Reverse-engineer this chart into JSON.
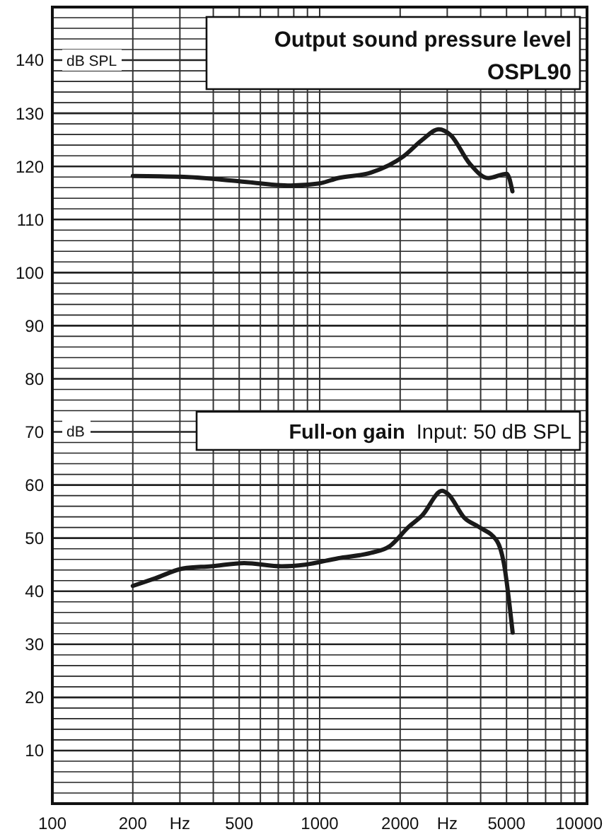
{
  "chart_data": {
    "type": "line",
    "log": "x",
    "grid": true,
    "line_style": "solid",
    "marker": "none",
    "xlim": [
      100,
      10000
    ],
    "ylim": [
      0,
      150
    ],
    "xticks": [
      100,
      200,
      {
        "value": 300,
        "label": "Hz"
      },
      {
        "value": 400,
        "label": null
      },
      500,
      {
        "value": 600,
        "label": null
      },
      {
        "value": 700,
        "label": null
      },
      {
        "value": 800,
        "label": null
      },
      {
        "value": 900,
        "label": null
      },
      1000,
      2000,
      {
        "value": 3000,
        "label": "Hz"
      },
      {
        "value": 4000,
        "label": null
      },
      5000,
      {
        "value": 6000,
        "label": null
      },
      {
        "value": 7000,
        "label": null
      },
      {
        "value": 8000,
        "label": null
      },
      {
        "value": 9000,
        "label": null
      },
      10000
    ],
    "yticks": [
      {
        "value": 2,
        "label": null
      },
      {
        "value": 4,
        "label": null
      },
      {
        "value": 6,
        "label": null
      },
      {
        "value": 8,
        "label": null
      },
      10,
      {
        "value": 12,
        "label": null
      },
      {
        "value": 14,
        "label": null
      },
      {
        "value": 16,
        "label": null
      },
      {
        "value": 18,
        "label": null
      },
      20,
      {
        "value": 22,
        "label": null
      },
      {
        "value": 24,
        "label": null
      },
      {
        "value": 26,
        "label": null
      },
      {
        "value": 28,
        "label": null
      },
      30,
      {
        "value": 32,
        "label": null
      },
      {
        "value": 34,
        "label": null
      },
      {
        "value": 36,
        "label": null
      },
      {
        "value": 38,
        "label": null
      },
      40,
      {
        "value": 42,
        "label": null
      },
      {
        "value": 44,
        "label": null
      },
      {
        "value": 46,
        "label": null
      },
      {
        "value": 48,
        "label": null
      },
      50,
      {
        "value": 52,
        "label": null
      },
      {
        "value": 54,
        "label": null
      },
      {
        "value": 56,
        "label": null
      },
      {
        "value": 58,
        "label": null
      },
      60,
      {
        "value": 62,
        "label": null
      },
      {
        "value": 64,
        "label": null
      },
      {
        "value": 66,
        "label": null
      },
      {
        "value": 68,
        "label": null
      },
      70,
      {
        "value": 72,
        "label": null
      },
      {
        "value": 74,
        "label": null
      },
      {
        "value": 76,
        "label": null
      },
      {
        "value": 78,
        "label": null
      },
      80,
      {
        "value": 82,
        "label": null
      },
      {
        "value": 84,
        "label": null
      },
      {
        "value": 86,
        "label": null
      },
      {
        "value": 88,
        "label": null
      },
      90,
      {
        "value": 92,
        "label": null
      },
      {
        "value": 94,
        "label": null
      },
      {
        "value": 96,
        "label": null
      },
      {
        "value": 98,
        "label": null
      },
      100,
      {
        "value": 102,
        "label": null
      },
      {
        "value": 104,
        "label": null
      },
      {
        "value": 106,
        "label": null
      },
      {
        "value": 108,
        "label": null
      },
      110,
      {
        "value": 112,
        "label": null
      },
      {
        "value": 114,
        "label": null
      },
      {
        "value": 116,
        "label": null
      },
      {
        "value": 118,
        "label": null
      },
      120,
      {
        "value": 122,
        "label": null
      },
      {
        "value": 124,
        "label": null
      },
      {
        "value": 126,
        "label": null
      },
      {
        "value": 128,
        "label": null
      },
      130,
      {
        "value": 132,
        "label": null
      },
      {
        "value": 134,
        "label": null
      },
      {
        "value": 136,
        "label": null
      },
      {
        "value": 138,
        "label": null
      },
      140,
      {
        "value": 142,
        "label": null
      },
      {
        "value": 144,
        "label": null
      },
      {
        "value": 146,
        "label": null
      },
      {
        "value": 148,
        "label": null
      }
    ],
    "series": [
      {
        "color": "#1a1a1a",
        "x": [
          200,
          320,
          500,
          780,
          1000,
          1170,
          1550,
          2060,
          2420,
          2790,
          3090,
          3630,
          4270,
          5010,
          5260
        ],
        "values": [
          118.2,
          118.0,
          117.2,
          116.4,
          116.8,
          117.8,
          118.8,
          121.9,
          125.0,
          127.0,
          125.9,
          120.6,
          117.8,
          118.6,
          115.3
        ]
      },
      {
        "color": "#1a1a1a",
        "x": [
          200,
          242,
          309,
          393,
          522,
          721,
          882,
          1170,
          1550,
          1830,
          2150,
          2420,
          2870,
          3020,
          3480,
          3940,
          4610,
          4880,
          5270
        ],
        "values": [
          41.0,
          42.4,
          44.3,
          44.7,
          45.3,
          44.7,
          45.0,
          46.2,
          47.2,
          48.5,
          52.1,
          54.3,
          58.9,
          58.3,
          53.8,
          52.1,
          49.4,
          45.4,
          32.2
        ]
      }
    ],
    "annotations": [
      "dB SPL",
      "Output sound pressure level",
      "OSPL90",
      "dB",
      "Full-on gain",
      "Input: 50 dB SPL"
    ]
  }
}
